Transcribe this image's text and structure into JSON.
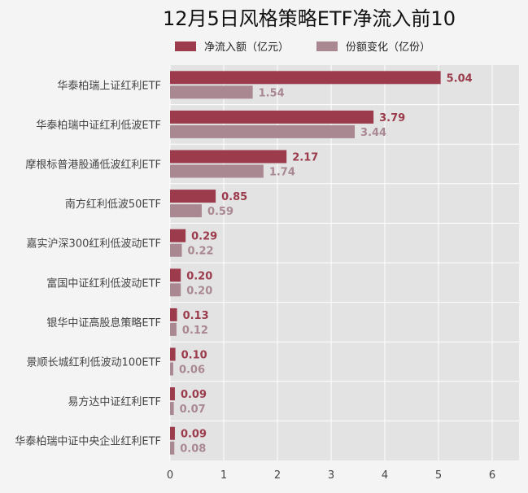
{
  "colors": {
    "flow": "#9b3b4c",
    "share": "#a98892",
    "plot_bg": "#e3e3e3",
    "grid": "#ffffff"
  },
  "chart_data": {
    "type": "bar",
    "orientation": "horizontal",
    "title": "12月5日风格策略ETF净流入前10",
    "categories": [
      "华泰柏瑞上证红利ETF",
      "华泰柏瑞中证红利低波ETF",
      "摩根标普港股通低波红利ETF",
      "南方红利低波50ETF",
      "嘉实沪深300红利低波动ETF",
      "富国中证红利低波动ETF",
      "银华中证高股息策略ETF",
      "景顺长城红利低波动100ETF",
      "易方达中证红利ETF",
      "华泰柏瑞中证中央企业红利ETF"
    ],
    "series": [
      {
        "name": "净流入额（亿元）",
        "values": [
          5.04,
          3.79,
          2.17,
          0.85,
          0.29,
          0.2,
          0.13,
          0.1,
          0.09,
          0.09
        ],
        "labels": [
          "5.04",
          "3.79",
          "2.17",
          "0.85",
          "0.29",
          "0.20",
          "0.13",
          "0.10",
          "0.09",
          "0.09"
        ]
      },
      {
        "name": "份额变化（亿份）",
        "values": [
          1.54,
          3.44,
          1.74,
          0.59,
          0.22,
          0.2,
          0.12,
          0.06,
          0.07,
          0.08
        ],
        "labels": [
          "1.54",
          "3.44",
          "1.74",
          "0.59",
          "0.22",
          "0.20",
          "0.12",
          "0.06",
          "0.07",
          "0.08"
        ]
      }
    ],
    "xlim": [
      0,
      6.5
    ],
    "xticks": [
      "0",
      "1",
      "2",
      "3",
      "4",
      "5",
      "6"
    ],
    "grid": true,
    "legend_position": "top"
  }
}
